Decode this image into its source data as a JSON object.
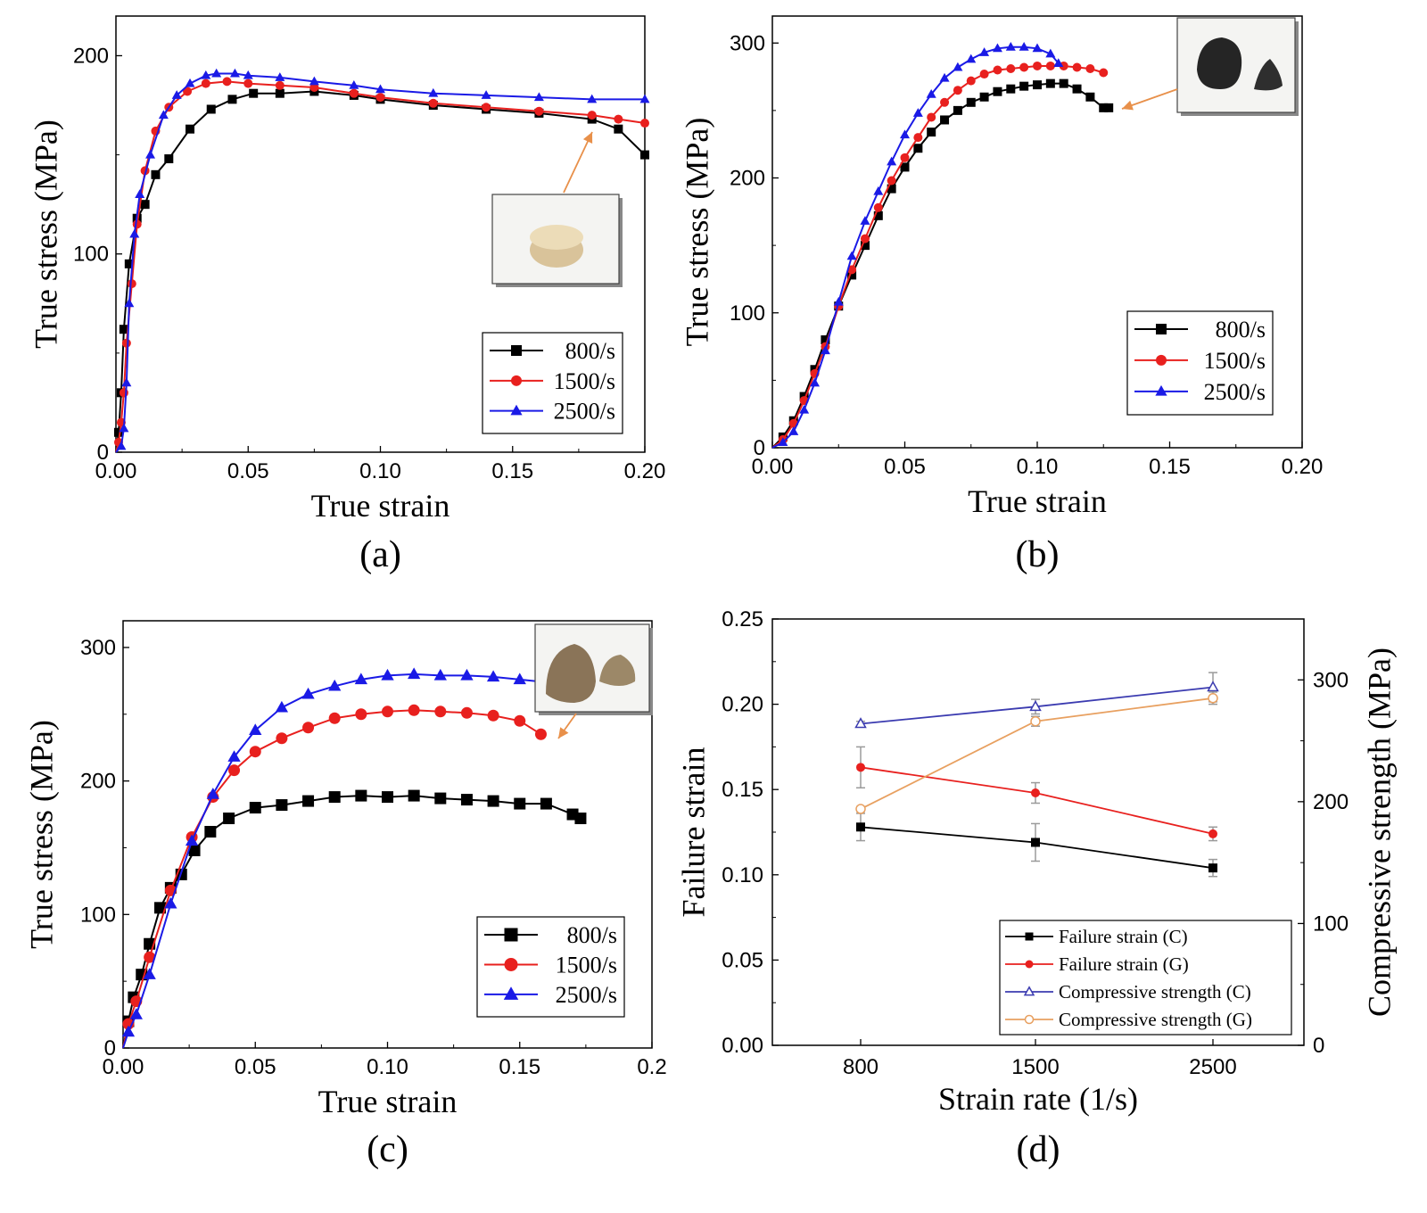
{
  "colors": {
    "black": "#000000",
    "red": "#e8201e",
    "blue": "#1a1ae6",
    "navy": "#3b3bb0",
    "orange": "#e8a060",
    "gray": "#9a9a9a",
    "arrow": "#e8904a"
  },
  "chart_data": [
    {
      "id": "a",
      "type": "line",
      "panel_label": "(a)",
      "xlabel": "True strain",
      "ylabel": "True stress (MPa)",
      "xlim": [
        0,
        0.2
      ],
      "ylim": [
        0,
        220
      ],
      "xticks": [
        0,
        0.05,
        0.1,
        0.15,
        0.2
      ],
      "xtick_labels": [
        "0.00",
        "0.05",
        "0.10",
        "0.15",
        "0.20"
      ],
      "yticks": [
        0,
        100,
        200
      ],
      "ytick_labels": [
        "0",
        "100",
        "200"
      ],
      "legend_position": "bottom-right",
      "inset": "cylindrical-specimen-photo",
      "series": [
        {
          "name": "800/s",
          "color": "#000000",
          "marker": "square",
          "x": [
            0,
            0.001,
            0.002,
            0.003,
            0.005,
            0.008,
            0.011,
            0.015,
            0.02,
            0.028,
            0.036,
            0.044,
            0.052,
            0.062,
            0.075,
            0.09,
            0.1,
            0.12,
            0.14,
            0.16,
            0.18,
            0.19,
            0.2
          ],
          "y": [
            0,
            10,
            30,
            62,
            95,
            118,
            125,
            140,
            148,
            163,
            173,
            178,
            181,
            181,
            182,
            180,
            178,
            175,
            173,
            171,
            168,
            163,
            150
          ]
        },
        {
          "name": "1500/s",
          "color": "#e8201e",
          "marker": "circle",
          "x": [
            0,
            0.001,
            0.002,
            0.003,
            0.004,
            0.006,
            0.008,
            0.011,
            0.015,
            0.02,
            0.027,
            0.034,
            0.042,
            0.05,
            0.062,
            0.075,
            0.09,
            0.1,
            0.12,
            0.14,
            0.16,
            0.18,
            0.19,
            0.2
          ],
          "y": [
            0,
            5,
            15,
            30,
            55,
            85,
            115,
            142,
            162,
            174,
            182,
            186,
            187,
            186,
            185,
            184,
            181,
            179,
            176,
            174,
            172,
            170,
            168,
            166
          ]
        },
        {
          "name": "2500/s",
          "color": "#1a1ae6",
          "marker": "triangle",
          "x": [
            0,
            0.002,
            0.003,
            0.004,
            0.005,
            0.007,
            0.009,
            0.013,
            0.018,
            0.023,
            0.028,
            0.034,
            0.038,
            0.045,
            0.05,
            0.062,
            0.075,
            0.09,
            0.1,
            0.12,
            0.14,
            0.16,
            0.18,
            0.2
          ],
          "y": [
            0,
            3,
            12,
            35,
            75,
            110,
            130,
            150,
            170,
            180,
            186,
            190,
            191,
            191,
            190,
            189,
            187,
            185,
            183,
            181,
            180,
            179,
            178,
            178
          ]
        }
      ]
    },
    {
      "id": "b",
      "type": "line",
      "panel_label": "(b)",
      "xlabel": "True strain",
      "ylabel": "True stress (MPa)",
      "xlim": [
        0,
        0.2
      ],
      "ylim": [
        0,
        320
      ],
      "xticks": [
        0,
        0.05,
        0.1,
        0.15,
        0.2
      ],
      "xtick_labels": [
        "0.00",
        "0.05",
        "0.10",
        "0.15",
        "0.20"
      ],
      "yticks": [
        0,
        100,
        200,
        300
      ],
      "ytick_labels": [
        "0",
        "100",
        "200",
        "300"
      ],
      "legend_position": "bottom-right",
      "inset": "fractured-specimen-photo",
      "series": [
        {
          "name": "800/s",
          "color": "#000000",
          "marker": "square",
          "x": [
            0,
            0.004,
            0.008,
            0.012,
            0.016,
            0.02,
            0.025,
            0.03,
            0.035,
            0.04,
            0.045,
            0.05,
            0.055,
            0.06,
            0.065,
            0.07,
            0.075,
            0.08,
            0.085,
            0.09,
            0.095,
            0.1,
            0.105,
            0.11,
            0.115,
            0.12,
            0.125,
            0.127
          ],
          "y": [
            0,
            8,
            20,
            38,
            58,
            80,
            105,
            128,
            150,
            172,
            192,
            208,
            222,
            234,
            243,
            250,
            256,
            260,
            264,
            266,
            268,
            269,
            270,
            270,
            266,
            260,
            252,
            252
          ]
        },
        {
          "name": "1500/s",
          "color": "#e8201e",
          "marker": "circle",
          "x": [
            0,
            0.004,
            0.008,
            0.012,
            0.016,
            0.02,
            0.025,
            0.03,
            0.035,
            0.04,
            0.045,
            0.05,
            0.055,
            0.06,
            0.065,
            0.07,
            0.075,
            0.08,
            0.085,
            0.09,
            0.095,
            0.1,
            0.105,
            0.11,
            0.115,
            0.12,
            0.125
          ],
          "y": [
            0,
            6,
            18,
            35,
            55,
            75,
            105,
            132,
            155,
            178,
            198,
            215,
            230,
            245,
            256,
            265,
            272,
            277,
            280,
            281,
            282,
            283,
            283,
            283,
            282,
            281,
            278
          ]
        },
        {
          "name": "2500/s",
          "color": "#1a1ae6",
          "marker": "triangle",
          "x": [
            0,
            0.004,
            0.008,
            0.012,
            0.016,
            0.02,
            0.025,
            0.03,
            0.035,
            0.04,
            0.045,
            0.05,
            0.055,
            0.06,
            0.065,
            0.07,
            0.075,
            0.08,
            0.085,
            0.09,
            0.095,
            0.1,
            0.105,
            0.108
          ],
          "y": [
            0,
            4,
            12,
            28,
            48,
            72,
            108,
            142,
            168,
            190,
            212,
            232,
            248,
            262,
            274,
            282,
            288,
            293,
            296,
            297,
            297,
            296,
            292,
            285
          ]
        }
      ]
    },
    {
      "id": "c",
      "type": "line",
      "panel_label": "(c)",
      "xlabel": "True strain",
      "ylabel": "True stress (MPa)",
      "xlim": [
        0,
        0.2
      ],
      "ylim": [
        0,
        320
      ],
      "xticks": [
        0,
        0.05,
        0.1,
        0.15,
        0.2
      ],
      "xtick_labels": [
        "0.00",
        "0.05",
        "0.10",
        "0.15",
        "0.2"
      ],
      "yticks": [
        0,
        100,
        200,
        300
      ],
      "ytick_labels": [
        "0",
        "100",
        "200",
        "300"
      ],
      "legend_position": "bottom-right",
      "inset": "fractured-specimen-photo",
      "series": [
        {
          "name": "800/s",
          "color": "#000000",
          "marker": "square",
          "x": [
            0,
            0.002,
            0.004,
            0.007,
            0.01,
            0.014,
            0.018,
            0.022,
            0.027,
            0.033,
            0.04,
            0.05,
            0.06,
            0.07,
            0.08,
            0.09,
            0.1,
            0.11,
            0.12,
            0.13,
            0.14,
            0.15,
            0.16,
            0.17,
            0.173
          ],
          "y": [
            0,
            20,
            38,
            55,
            78,
            105,
            120,
            130,
            148,
            162,
            172,
            180,
            182,
            185,
            188,
            189,
            188,
            189,
            187,
            186,
            185,
            183,
            183,
            175,
            172
          ]
        },
        {
          "name": "1500/s",
          "color": "#e8201e",
          "marker": "circle",
          "x": [
            0,
            0.002,
            0.005,
            0.01,
            0.018,
            0.026,
            0.034,
            0.042,
            0.05,
            0.06,
            0.07,
            0.08,
            0.09,
            0.1,
            0.11,
            0.12,
            0.13,
            0.14,
            0.15,
            0.158
          ],
          "y": [
            0,
            18,
            35,
            68,
            118,
            158,
            188,
            208,
            222,
            232,
            240,
            247,
            250,
            252,
            253,
            252,
            251,
            249,
            245,
            235
          ]
        },
        {
          "name": "2500/s",
          "color": "#1a1ae6",
          "marker": "triangle",
          "x": [
            0,
            0.002,
            0.005,
            0.01,
            0.018,
            0.026,
            0.034,
            0.042,
            0.05,
            0.06,
            0.07,
            0.08,
            0.09,
            0.1,
            0.11,
            0.12,
            0.13,
            0.14,
            0.15,
            0.16
          ],
          "y": [
            0,
            12,
            25,
            55,
            108,
            155,
            190,
            218,
            238,
            255,
            265,
            271,
            276,
            279,
            280,
            279,
            279,
            278,
            276,
            274
          ]
        }
      ]
    },
    {
      "id": "d",
      "type": "line",
      "panel_label": "(d)",
      "xlabel": "Strain rate (1/s)",
      "ylabel": "Failure strain",
      "ylabel_right": "Compressive strength (MPa)",
      "categories": [
        "800",
        "1500",
        "2500"
      ],
      "ylim": [
        0,
        0.25
      ],
      "yticks": [
        0,
        0.05,
        0.1,
        0.15,
        0.2,
        0.25
      ],
      "ytick_labels": [
        "0.00",
        "0.05",
        "0.10",
        "0.15",
        "0.20",
        "0.25"
      ],
      "ylim_right": [
        0,
        350
      ],
      "yticks_right": [
        0,
        100,
        200,
        300
      ],
      "ytick_labels_right": [
        "0",
        "100",
        "200",
        "300"
      ],
      "legend_position": "bottom-right",
      "series": [
        {
          "name": "Failure strain (C)",
          "axis": "left",
          "color": "#000000",
          "marker": "square-filled",
          "values": [
            0.128,
            0.119,
            0.104
          ],
          "errors": [
            0.008,
            0.011,
            0.005
          ]
        },
        {
          "name": "Failure strain (G)",
          "axis": "left",
          "color": "#e8201e",
          "marker": "circle-filled",
          "values": [
            0.163,
            0.148,
            0.124
          ],
          "errors": [
            0.012,
            0.006,
            0.004
          ]
        },
        {
          "name": "Compressive strength (C)",
          "axis": "right",
          "color": "#3b3bb0",
          "marker": "triangle-open",
          "values": [
            264,
            278,
            294
          ],
          "errors": [
            2,
            6,
            12
          ]
        },
        {
          "name": "Compressive strength (G)",
          "axis": "right",
          "color": "#e8a060",
          "marker": "circle-open",
          "values": [
            194,
            266,
            285
          ],
          "errors": [
            2,
            4,
            5
          ]
        }
      ]
    }
  ]
}
